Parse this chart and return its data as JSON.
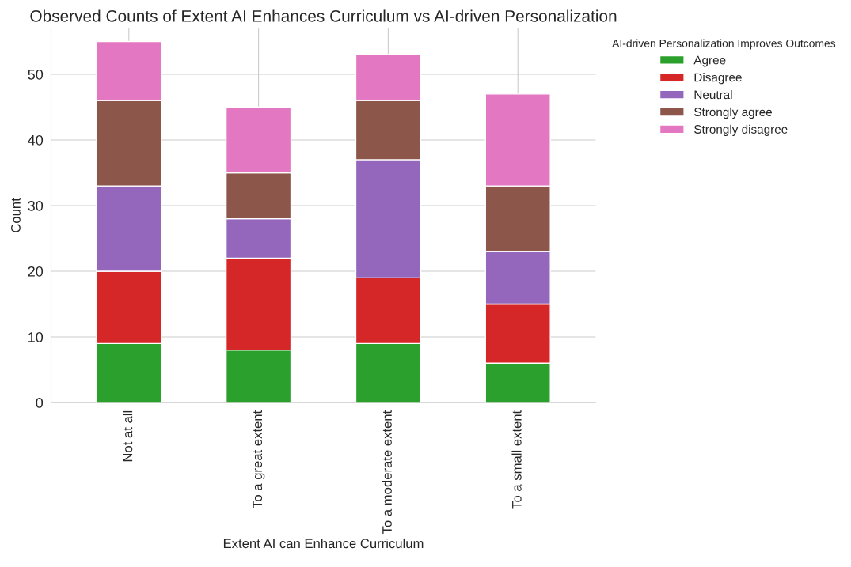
{
  "chart_data": {
    "type": "bar",
    "title": "Observed Counts of Extent AI Enhances Curriculum vs AI-driven Personalization",
    "xlabel": "Extent AI can Enhance Curriculum",
    "ylabel": "Count",
    "legend_title": "AI-driven Personalization Improves Outcomes",
    "categories": [
      "Not at all",
      "To a great extent",
      "To a moderate extent",
      "To a small extent"
    ],
    "stacked": true,
    "series": [
      {
        "name": "Agree",
        "color": "#2ca02c",
        "values": [
          9,
          8,
          9,
          6
        ]
      },
      {
        "name": "Disagree",
        "color": "#d62728",
        "values": [
          11,
          14,
          10,
          9
        ]
      },
      {
        "name": "Neutral",
        "color": "#9467bd",
        "values": [
          13,
          6,
          18,
          8
        ]
      },
      {
        "name": "Strongly agree",
        "color": "#8c564b",
        "values": [
          13,
          7,
          9,
          10
        ]
      },
      {
        "name": "Strongly disagree",
        "color": "#e377c2",
        "values": [
          9,
          10,
          7,
          14
        ]
      }
    ],
    "ylim": [
      0,
      57
    ],
    "yticks": [
      0,
      10,
      20,
      30,
      40,
      50
    ],
    "grid": true,
    "legend": "top right"
  }
}
